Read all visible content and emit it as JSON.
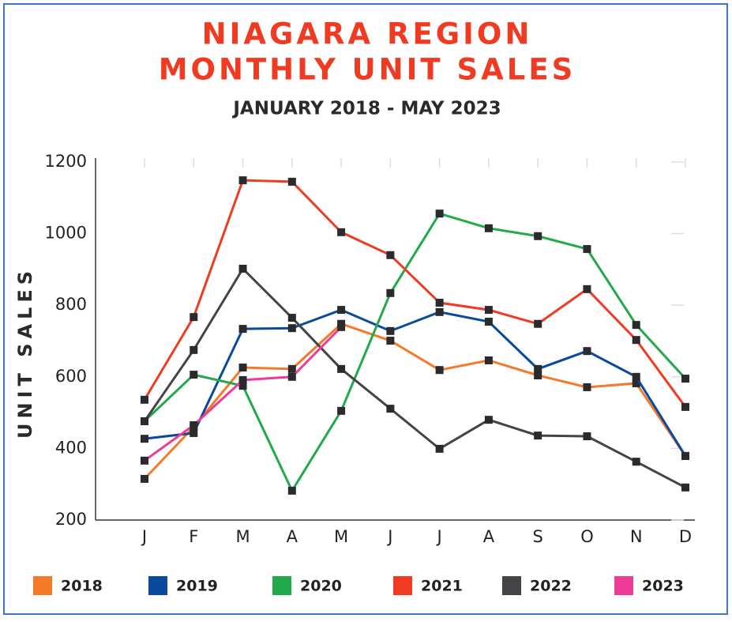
{
  "chart_data": {
    "type": "line",
    "title": [
      "NIAGARA REGION",
      "MONTHLY UNIT SALES"
    ],
    "subtitle": "JANUARY 2018 - MAY 2023",
    "y_label": "UNIT SALES",
    "categories": [
      "J",
      "F",
      "M",
      "A",
      "M",
      "J",
      "J",
      "A",
      "S",
      "O",
      "N",
      "D"
    ],
    "ylim": [
      200,
      1200
    ],
    "yticks": [
      200,
      400,
      600,
      800,
      1000,
      1200
    ],
    "series": [
      {
        "name": "2018",
        "color": "#f47a2a",
        "values": [
          315,
          460,
          626,
          622,
          748,
          701,
          619,
          646,
          604,
          571,
          582,
          379
        ]
      },
      {
        "name": "2019",
        "color": "#0a4a9c",
        "values": [
          427,
          443,
          734,
          736,
          787,
          728,
          781,
          754,
          622,
          672,
          600,
          379
        ]
      },
      {
        "name": "2020",
        "color": "#22aa4a",
        "values": [
          476,
          606,
          575,
          282,
          505,
          834,
          1056,
          1015,
          993,
          957,
          745,
          595
        ]
      },
      {
        "name": "2021",
        "color": "#f03a22",
        "values": [
          536,
          767,
          1149,
          1145,
          1004,
          940,
          807,
          787,
          748,
          845,
          703,
          516
        ]
      },
      {
        "name": "2022",
        "color": "#444448",
        "values": [
          476,
          675,
          902,
          765,
          622,
          511,
          399,
          480,
          436,
          434,
          363,
          291
        ]
      },
      {
        "name": "2023",
        "color": "#ee3b97",
        "values": [
          366,
          465,
          591,
          600,
          739,
          null,
          null,
          null,
          null,
          null,
          null,
          null
        ]
      }
    ]
  }
}
